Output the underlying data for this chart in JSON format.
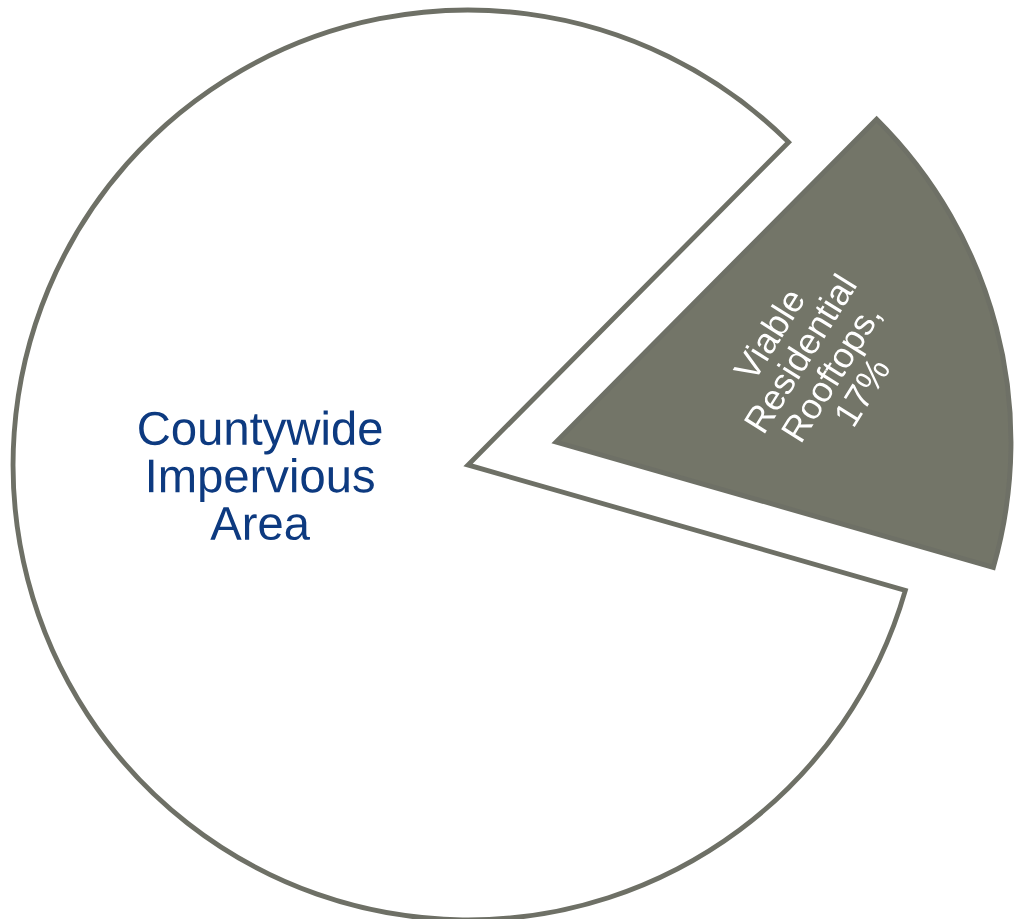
{
  "chart_data": {
    "type": "pie",
    "categories": [
      "Countywide Impervious Area",
      "Viable Residential Rooftops, 17%"
    ],
    "values": [
      83,
      17
    ],
    "colors": [
      "#ffffff",
      "#737568"
    ]
  }
}
